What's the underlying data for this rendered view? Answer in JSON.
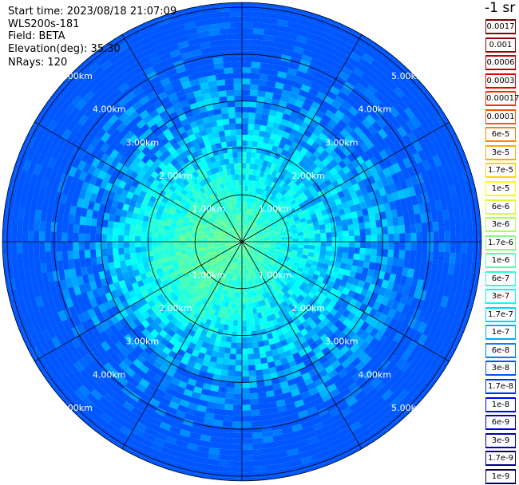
{
  "info": {
    "start_time": "Start time: 2023/08/18 21:07:09",
    "instrument": "WLS200s-181",
    "field": "Field: BETA",
    "elevation": "Elevation(deg): 35.30",
    "nrays": "NRays: 120"
  },
  "colorbar": {
    "title": "-1 sr",
    "entries": [
      {
        "label": "0.0017",
        "color": "#7a0000"
      },
      {
        "label": "0.001",
        "color": "#9a0000"
      },
      {
        "label": "0.0006",
        "color": "#c00000"
      },
      {
        "label": "0.0003",
        "color": "#e60000"
      },
      {
        "label": "0.00017",
        "color": "#ff2a00"
      },
      {
        "label": "0.0001",
        "color": "#ff5500"
      },
      {
        "label": "6e-5",
        "color": "#ff7f00"
      },
      {
        "label": "3e-5",
        "color": "#ffaa00"
      },
      {
        "label": "1.7e-5",
        "color": "#ffd400"
      },
      {
        "label": "1e-5",
        "color": "#ffff00"
      },
      {
        "label": "6e-6",
        "color": "#d4ff2a"
      },
      {
        "label": "3e-6",
        "color": "#aaff55"
      },
      {
        "label": "1.7e-6",
        "color": "#7fff7f"
      },
      {
        "label": "1e-6",
        "color": "#55ffaa"
      },
      {
        "label": "6e-7",
        "color": "#2affd4"
      },
      {
        "label": "3e-7",
        "color": "#00ffff"
      },
      {
        "label": "1.7e-7",
        "color": "#00d4ff"
      },
      {
        "label": "1e-7",
        "color": "#00aaff"
      },
      {
        "label": "6e-8",
        "color": "#007fff"
      },
      {
        "label": "3e-8",
        "color": "#0055ff"
      },
      {
        "label": "1.7e-8",
        "color": "#002aff"
      },
      {
        "label": "1e-8",
        "color": "#0000ff"
      },
      {
        "label": "6e-9",
        "color": "#0000d4"
      },
      {
        "label": "3e-9",
        "color": "#0000aa"
      },
      {
        "label": "1.7e-9",
        "color": "#00007f"
      },
      {
        "label": "1e-9",
        "color": "#000055"
      }
    ]
  },
  "chart_data": {
    "type": "heatmap",
    "projection": "polar (PPI)",
    "field": "BETA",
    "unit": "-1 sr",
    "elevation_deg": 35.3,
    "n_rays": 120,
    "range_rings_km": [
      1,
      2,
      3,
      4,
      5
    ],
    "ring_labels": [
      "1.00km",
      "2.00km",
      "3.00km",
      "4.00km",
      "5.00km"
    ],
    "spokes_deg": [
      0,
      30,
      60,
      90,
      120,
      150,
      180,
      210,
      240,
      270,
      300,
      330
    ],
    "max_range_km": 5.1,
    "dominant_value_range": [
      "3e-8",
      "6e-6"
    ]
  }
}
